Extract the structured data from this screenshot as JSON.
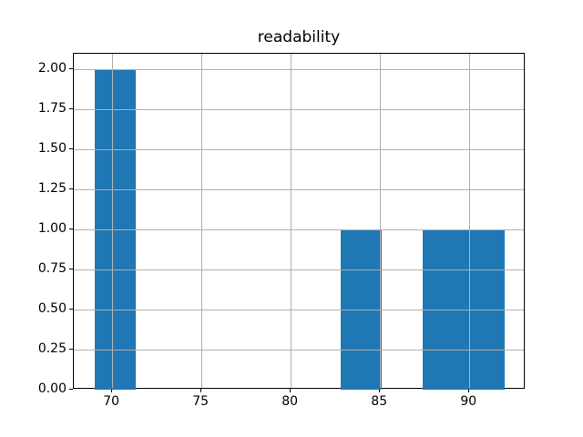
{
  "figure": {
    "background": "#ffffff",
    "spine_color": "#000000",
    "text_color": "#000000"
  },
  "chart_data": {
    "type": "bar",
    "subtype": "histogram",
    "title": "readability",
    "xlabel": "",
    "ylabel": "",
    "xlim": [
      67.85,
      93.15
    ],
    "ylim": [
      0,
      2.1
    ],
    "grid": true,
    "grid_above_bars": true,
    "legend": false,
    "bar_color": "#1f77b4",
    "grid_color": "#b0b0b0",
    "bin_edges": [
      69.0,
      71.3,
      73.6,
      75.9,
      78.2,
      80.5,
      82.8,
      85.1,
      87.4,
      89.7,
      92.0
    ],
    "counts": [
      2,
      0,
      0,
      0,
      0,
      0,
      1,
      0,
      1,
      1
    ],
    "bars": [
      {
        "x0": 69.0,
        "x1": 71.3,
        "height": 2
      },
      {
        "x0": 82.8,
        "x1": 85.1,
        "height": 1
      },
      {
        "x0": 87.4,
        "x1": 89.7,
        "height": 1
      },
      {
        "x0": 89.7,
        "x1": 92.0,
        "height": 1
      }
    ],
    "x_ticks": [
      70,
      75,
      80,
      85,
      90
    ],
    "x_tick_labels": [
      "70",
      "75",
      "80",
      "85",
      "90"
    ],
    "y_ticks": [
      0.0,
      0.25,
      0.5,
      0.75,
      1.0,
      1.25,
      1.5,
      1.75,
      2.0
    ],
    "y_tick_labels": [
      "0.00",
      "0.25",
      "0.50",
      "0.75",
      "1.00",
      "1.25",
      "1.50",
      "1.75",
      "2.00"
    ]
  }
}
